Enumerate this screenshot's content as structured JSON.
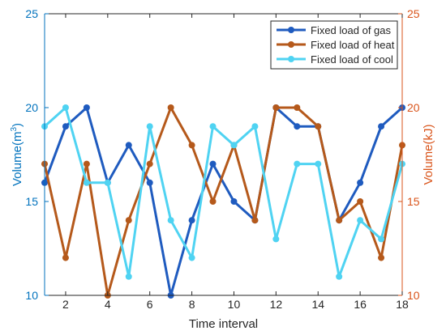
{
  "chart_data": {
    "type": "line",
    "xlabel": "Time interval",
    "ylabel_left": "Volume(m",
    "ylabel_left_sup": "3",
    "ylabel_left_close": ")",
    "ylabel_right": "Volume(kJ)",
    "x": [
      1,
      2,
      3,
      4,
      5,
      6,
      7,
      8,
      9,
      10,
      11,
      12,
      13,
      14,
      15,
      16,
      17,
      18
    ],
    "xlim": [
      1,
      18
    ],
    "ylim_left": [
      10,
      25
    ],
    "ylim_right": [
      10,
      25
    ],
    "xticks": [
      "2",
      "4",
      "6",
      "8",
      "10",
      "12",
      "14",
      "16",
      "18"
    ],
    "yticks_left": [
      "10",
      "15",
      "20",
      "25"
    ],
    "yticks_right": [
      "10",
      "15",
      "20",
      "25"
    ],
    "grid": false,
    "legend_position": "top-right",
    "colors": {
      "left_axis": "#0072BD",
      "right_axis": "#D95319"
    },
    "series": [
      {
        "name": "Fixed load of gas",
        "color": "#1F5BBF",
        "axis": "left",
        "values": [
          16,
          19,
          20,
          16,
          18,
          16,
          10,
          14,
          17,
          15,
          14,
          20,
          19,
          19,
          14,
          16,
          19,
          20
        ]
      },
      {
        "name": "Fixed load of heat",
        "color": "#B5591B",
        "axis": "right",
        "values": [
          17,
          12,
          17,
          10,
          14,
          17,
          20,
          18,
          15,
          18,
          14,
          20,
          20,
          19,
          14,
          15,
          12,
          18
        ]
      },
      {
        "name": "Fixed load of cool",
        "color": "#4FD3F2",
        "axis": "right",
        "values": [
          19,
          20,
          16,
          16,
          11,
          19,
          14,
          12,
          19,
          18,
          19,
          13,
          17,
          17,
          11,
          14,
          13,
          17
        ]
      }
    ]
  }
}
